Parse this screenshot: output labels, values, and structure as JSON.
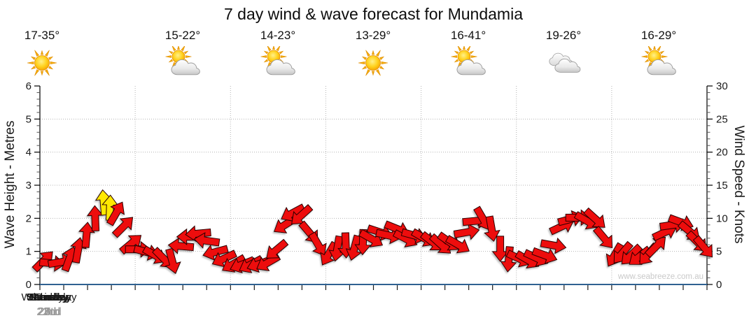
{
  "title": "7 day wind & wave forecast for Mundamia",
  "watermark": "www.seabreeze.com.au",
  "days": [
    {
      "name": "Thursday",
      "date": "22nd",
      "temp": "15-22°",
      "icon": "partly-cloudy",
      "bold": false
    },
    {
      "name": "Friday",
      "date": "23rd",
      "temp": "14-23°",
      "icon": "partly-cloudy",
      "bold": false
    },
    {
      "name": "Saturday",
      "date": "24th",
      "temp": "13-29°",
      "icon": "sunny",
      "bold": true
    },
    {
      "name": "Sunday",
      "date": "25th",
      "temp": "16-41°",
      "icon": "partly-cloudy",
      "bold": true
    },
    {
      "name": "Monday",
      "date": "26th",
      "temp": "19-26°",
      "icon": "cloudy",
      "bold": false
    },
    {
      "name": "Tuesday",
      "date": "27th",
      "temp": "16-29°",
      "icon": "partly-cloudy",
      "bold": false
    },
    {
      "name": "Wednesday",
      "date": "28th",
      "temp": "17-35°",
      "icon": "sunny",
      "bold": false
    }
  ],
  "colors": {
    "arrow_red": "#ED0A0A",
    "arrow_yellow": "#FFE800",
    "arrow_outline": "#2a0000",
    "x_axis_line": "#2F6191",
    "gridline": "#b5b5b5",
    "tick": "#1a1a1a",
    "date_gray": "#9a9a9a",
    "watermark_gray": "#c9c9c9"
  },
  "chart_data": {
    "type": "scatter",
    "title": "7 day wind & wave forecast for Mundamia",
    "subtitle": "",
    "legend": "none",
    "grid": {
      "horizontal_dotted_at_metres": [
        1,
        2,
        3,
        4,
        5
      ],
      "vertical_dotted_at_day_boundaries": true
    },
    "left_axis": {
      "label": "Wave Height - Metres",
      "min": 0,
      "max": 6,
      "major": 1,
      "minor": 0.2
    },
    "right_axis": {
      "label": "Wind Speed - Knots",
      "min": 0,
      "max": 30,
      "major": 5,
      "minor": 1
    },
    "x_axis": {
      "categories": [
        "Thursday 22nd",
        "Friday 23rd",
        "Saturday 24th",
        "Sunday 25th",
        "Monday 26th",
        "Tuesday 27th",
        "Wednesday 28th"
      ],
      "minor_ticks_per_day": 4
    },
    "arrow_format": [
      "time_in_days_0_to_7",
      "wind_speed_knots",
      "arrow_direction_deg_cw_from_east",
      "optional_y_for_yellow"
    ],
    "wind_arrows": [
      [
        0.04,
        3.6,
        315
      ],
      [
        0.13,
        3.2,
        5
      ],
      [
        0.22,
        3.4,
        350
      ],
      [
        0.31,
        3.9,
        290
      ],
      [
        0.4,
        5.2,
        280
      ],
      [
        0.49,
        7.5,
        275
      ],
      [
        0.58,
        10.0,
        268
      ],
      [
        0.67,
        12.4,
        265,
        "y"
      ],
      [
        0.735,
        11.6,
        272,
        "y"
      ],
      [
        0.8,
        10.8,
        300
      ],
      [
        0.88,
        8.8,
        315
      ],
      [
        0.96,
        6.2,
        320
      ],
      [
        1.03,
        5.3,
        0
      ],
      [
        1.12,
        4.9,
        15
      ],
      [
        1.21,
        4.4,
        30
      ],
      [
        1.3,
        3.9,
        45
      ],
      [
        1.39,
        3.5,
        75
      ],
      [
        1.48,
        5.8,
        185
      ],
      [
        1.57,
        7.2,
        180
      ],
      [
        1.66,
        7.7,
        175
      ],
      [
        1.75,
        6.6,
        188
      ],
      [
        1.84,
        4.9,
        165
      ],
      [
        1.93,
        3.9,
        155
      ],
      [
        2.03,
        3.1,
        150
      ],
      [
        2.12,
        3.0,
        158
      ],
      [
        2.21,
        3.0,
        152
      ],
      [
        2.3,
        3.1,
        160
      ],
      [
        2.39,
        3.3,
        150
      ],
      [
        2.48,
        5.2,
        140
      ],
      [
        2.57,
        9.0,
        148
      ],
      [
        2.65,
        10.8,
        152
      ],
      [
        2.74,
        10.4,
        138
      ],
      [
        2.83,
        7.8,
        50
      ],
      [
        2.92,
        6.0,
        60
      ],
      [
        3.03,
        4.6,
        120
      ],
      [
        3.12,
        5.4,
        100
      ],
      [
        3.21,
        5.9,
        88
      ],
      [
        3.3,
        5.5,
        105
      ],
      [
        3.39,
        6.4,
        92
      ],
      [
        3.48,
        6.9,
        30
      ],
      [
        3.57,
        7.9,
        18
      ],
      [
        3.66,
        7.4,
        12
      ],
      [
        3.75,
        8.4,
        22
      ],
      [
        3.84,
        6.9,
        28
      ],
      [
        3.93,
        7.4,
        15
      ],
      [
        4.03,
        7.0,
        30
      ],
      [
        4.12,
        6.4,
        38
      ],
      [
        4.21,
        6.0,
        42
      ],
      [
        4.3,
        6.4,
        35
      ],
      [
        4.39,
        6.0,
        30
      ],
      [
        4.48,
        7.9,
        350
      ],
      [
        4.57,
        9.6,
        355
      ],
      [
        4.65,
        9.9,
        60
      ],
      [
        4.74,
        8.4,
        80
      ],
      [
        4.83,
        5.4,
        90
      ],
      [
        4.92,
        3.8,
        95
      ],
      [
        5.03,
        3.9,
        25
      ],
      [
        5.12,
        3.7,
        30
      ],
      [
        5.21,
        4.0,
        25
      ],
      [
        5.3,
        4.4,
        20
      ],
      [
        5.39,
        5.9,
        10
      ],
      [
        5.48,
        8.8,
        335
      ],
      [
        5.57,
        9.9,
        345
      ],
      [
        5.65,
        10.1,
        0
      ],
      [
        5.74,
        9.6,
        30
      ],
      [
        5.83,
        9.9,
        42
      ],
      [
        5.92,
        7.0,
        50
      ],
      [
        6.03,
        4.4,
        120
      ],
      [
        6.11,
        4.7,
        130
      ],
      [
        6.2,
        4.4,
        136
      ],
      [
        6.29,
        4.2,
        142
      ],
      [
        6.38,
        4.5,
        130
      ],
      [
        6.47,
        5.8,
        315
      ],
      [
        6.56,
        7.9,
        335
      ],
      [
        6.64,
        9.0,
        352
      ],
      [
        6.73,
        9.4,
        20
      ],
      [
        6.82,
        8.0,
        40
      ],
      [
        6.9,
        6.4,
        45
      ],
      [
        6.97,
        5.6,
        50
      ]
    ]
  }
}
